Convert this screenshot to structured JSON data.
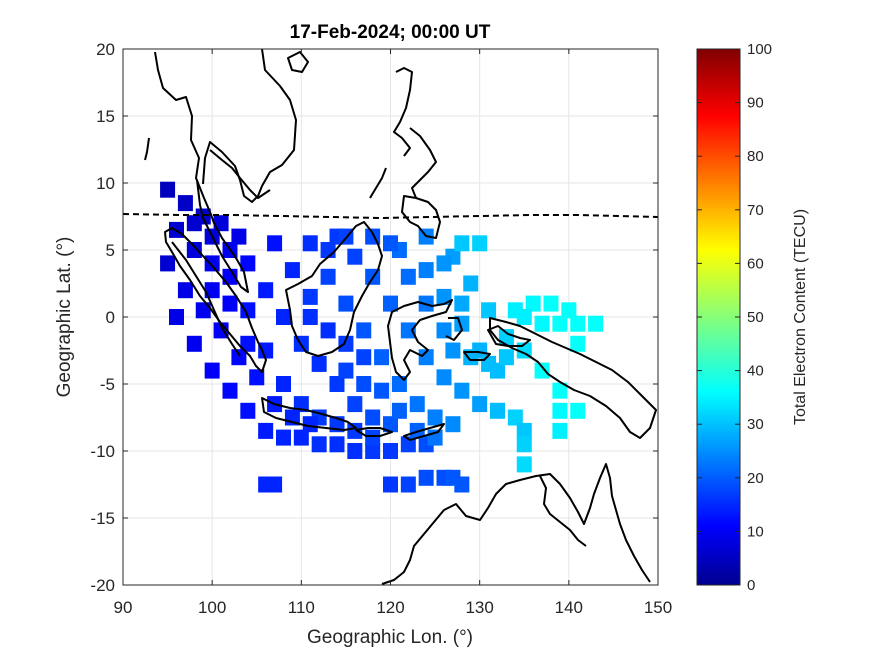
{
  "title": "17-Feb-2024; 00:00 UT",
  "chart_data": {
    "type": "heatmap",
    "title": "17-Feb-2024; 00:00 UT",
    "xlabel": "Geographic Lon. (°)",
    "ylabel": "Geographic Lat. (°)",
    "xlim": [
      90,
      150
    ],
    "ylim": [
      -20,
      20
    ],
    "x_ticks": [
      "90",
      "100",
      "110",
      "120",
      "130",
      "140",
      "150"
    ],
    "y_ticks": [
      "20",
      "15",
      "10",
      "5",
      "0",
      "-5",
      "-10",
      "-15",
      "-20"
    ],
    "grid": true,
    "colorbar": {
      "label": "Total Electron Content (TECU)",
      "range": [
        0,
        100
      ],
      "ticks": [
        "100",
        "90",
        "80",
        "70",
        "60",
        "50",
        "40",
        "30",
        "20",
        "10",
        "0"
      ],
      "colormap": "jet"
    },
    "magnetic_equator_lat": 7.5,
    "tec_cells": [
      {
        "lon": 95,
        "lat": 9.5,
        "tec": 6
      },
      {
        "lon": 97,
        "lat": 8.5,
        "tec": 7
      },
      {
        "lon": 99,
        "lat": 7.5,
        "tec": 8
      },
      {
        "lon": 101,
        "lat": 7.0,
        "tec": 9
      },
      {
        "lon": 103,
        "lat": 6.0,
        "tec": 10
      },
      {
        "lon": 96,
        "lat": 6.5,
        "tec": 8
      },
      {
        "lon": 98,
        "lat": 5.0,
        "tec": 9
      },
      {
        "lon": 100,
        "lat": 4.0,
        "tec": 11
      },
      {
        "lon": 102,
        "lat": 3.0,
        "tec": 12
      },
      {
        "lon": 95,
        "lat": 4.0,
        "tec": 8
      },
      {
        "lon": 97,
        "lat": 2.0,
        "tec": 10
      },
      {
        "lon": 99,
        "lat": 0.5,
        "tec": 11
      },
      {
        "lon": 101,
        "lat": -1.0,
        "tec": 12
      },
      {
        "lon": 96,
        "lat": 0.0,
        "tec": 10
      },
      {
        "lon": 98,
        "lat": -2.0,
        "tec": 11
      },
      {
        "lon": 100,
        "lat": -4.0,
        "tec": 12
      },
      {
        "lon": 102,
        "lat": -5.5,
        "tec": 13
      },
      {
        "lon": 104,
        "lat": -7.0,
        "tec": 14
      },
      {
        "lon": 106,
        "lat": -8.5,
        "tec": 15
      },
      {
        "lon": 108,
        "lat": -9.0,
        "tec": 16
      },
      {
        "lon": 110,
        "lat": -9.0,
        "tec": 16
      },
      {
        "lon": 112,
        "lat": -9.5,
        "tec": 17
      },
      {
        "lon": 114,
        "lat": -9.5,
        "tec": 17
      },
      {
        "lon": 116,
        "lat": -10.0,
        "tec": 17
      },
      {
        "lon": 118,
        "lat": -10.0,
        "tec": 18
      },
      {
        "lon": 120,
        "lat": -10.0,
        "tec": 18
      },
      {
        "lon": 122,
        "lat": -9.5,
        "tec": 19
      },
      {
        "lon": 124,
        "lat": -9.5,
        "tec": 20
      },
      {
        "lon": 104,
        "lat": 4.0,
        "tec": 13
      },
      {
        "lon": 106,
        "lat": 2.0,
        "tec": 15
      },
      {
        "lon": 108,
        "lat": 0.0,
        "tec": 16
      },
      {
        "lon": 110,
        "lat": -2.0,
        "tec": 17
      },
      {
        "lon": 112,
        "lat": -3.5,
        "tec": 17
      },
      {
        "lon": 114,
        "lat": -5.0,
        "tec": 18
      },
      {
        "lon": 116,
        "lat": -6.5,
        "tec": 19
      },
      {
        "lon": 118,
        "lat": -7.5,
        "tec": 20
      },
      {
        "lon": 120,
        "lat": -8.0,
        "tec": 21
      },
      {
        "lon": 106,
        "lat": -2.5,
        "tec": 15
      },
      {
        "lon": 108,
        "lat": -5.0,
        "tec": 16
      },
      {
        "lon": 110,
        "lat": -6.5,
        "tec": 17
      },
      {
        "lon": 112,
        "lat": -7.5,
        "tec": 18
      },
      {
        "lon": 104,
        "lat": -2.0,
        "tec": 14
      },
      {
        "lon": 104,
        "lat": 0.5,
        "tec": 14
      },
      {
        "lon": 107,
        "lat": 5.5,
        "tec": 14
      },
      {
        "lon": 109,
        "lat": 3.5,
        "tec": 16
      },
      {
        "lon": 111,
        "lat": 1.5,
        "tec": 18
      },
      {
        "lon": 113,
        "lat": 3.0,
        "tec": 19
      },
      {
        "lon": 115,
        "lat": 1.0,
        "tec": 20
      },
      {
        "lon": 117,
        "lat": -1.0,
        "tec": 21
      },
      {
        "lon": 119,
        "lat": -3.0,
        "tec": 22
      },
      {
        "lon": 121,
        "lat": -5.0,
        "tec": 23
      },
      {
        "lon": 123,
        "lat": -6.5,
        "tec": 24
      },
      {
        "lon": 125,
        "lat": -7.5,
        "tec": 25
      },
      {
        "lon": 127,
        "lat": -8.0,
        "tec": 26
      },
      {
        "lon": 111,
        "lat": 5.5,
        "tec": 17
      },
      {
        "lon": 114,
        "lat": 6.0,
        "tec": 18
      },
      {
        "lon": 116,
        "lat": 4.5,
        "tec": 19
      },
      {
        "lon": 118,
        "lat": 3.0,
        "tec": 21
      },
      {
        "lon": 120,
        "lat": 1.0,
        "tec": 22
      },
      {
        "lon": 122,
        "lat": -1.0,
        "tec": 24
      },
      {
        "lon": 124,
        "lat": -3.0,
        "tec": 25
      },
      {
        "lon": 126,
        "lat": -4.5,
        "tec": 26
      },
      {
        "lon": 128,
        "lat": -5.5,
        "tec": 27
      },
      {
        "lon": 130,
        "lat": -6.5,
        "tec": 28
      },
      {
        "lon": 118,
        "lat": 6.0,
        "tec": 20
      },
      {
        "lon": 121,
        "lat": 5.0,
        "tec": 23
      },
      {
        "lon": 124,
        "lat": 3.5,
        "tec": 25
      },
      {
        "lon": 126,
        "lat": 1.5,
        "tec": 27
      },
      {
        "lon": 128,
        "lat": -0.5,
        "tec": 28
      },
      {
        "lon": 130,
        "lat": -2.5,
        "tec": 30
      },
      {
        "lon": 132,
        "lat": -4.0,
        "tec": 31
      },
      {
        "lon": 124,
        "lat": 6.0,
        "tec": 25
      },
      {
        "lon": 127,
        "lat": 4.5,
        "tec": 28
      },
      {
        "lon": 128,
        "lat": 5.5,
        "tec": 32
      },
      {
        "lon": 130,
        "lat": 5.5,
        "tec": 33
      },
      {
        "lon": 129,
        "lat": 2.5,
        "tec": 30
      },
      {
        "lon": 131,
        "lat": 0.5,
        "tec": 32
      },
      {
        "lon": 133,
        "lat": -1.5,
        "tec": 33
      },
      {
        "lon": 135,
        "lat": -2.5,
        "tec": 34
      },
      {
        "lon": 134,
        "lat": 0.5,
        "tec": 36
      },
      {
        "lon": 136,
        "lat": 1.0,
        "tec": 37
      },
      {
        "lon": 138,
        "lat": 1.0,
        "tec": 38
      },
      {
        "lon": 140,
        "lat": 0.5,
        "tec": 38
      },
      {
        "lon": 137,
        "lat": -0.5,
        "tec": 37
      },
      {
        "lon": 139,
        "lat": -0.5,
        "tec": 38
      },
      {
        "lon": 141,
        "lat": -0.5,
        "tec": 38
      },
      {
        "lon": 143,
        "lat": -0.5,
        "tec": 38
      },
      {
        "lon": 135,
        "lat": 0.0,
        "tec": 36
      },
      {
        "lon": 141,
        "lat": -2.0,
        "tec": 38
      },
      {
        "lon": 137,
        "lat": -4.0,
        "tec": 38
      },
      {
        "lon": 139,
        "lat": -5.5,
        "tec": 38
      },
      {
        "lon": 139,
        "lat": -7.0,
        "tec": 37
      },
      {
        "lon": 141,
        "lat": -7.0,
        "tec": 38
      },
      {
        "lon": 139,
        "lat": -8.5,
        "tec": 36
      },
      {
        "lon": 134,
        "lat": -7.5,
        "tec": 33
      },
      {
        "lon": 135,
        "lat": -8.5,
        "tec": 32
      },
      {
        "lon": 135,
        "lat": -9.5,
        "tec": 33
      },
      {
        "lon": 135,
        "lat": -11.0,
        "tec": 34
      },
      {
        "lon": 132,
        "lat": -7.0,
        "tec": 31
      },
      {
        "lon": 129,
        "lat": -3.0,
        "tec": 30
      },
      {
        "lon": 131,
        "lat": -3.5,
        "tec": 31
      },
      {
        "lon": 106,
        "lat": -12.5,
        "tec": 16
      },
      {
        "lon": 107,
        "lat": -12.5,
        "tec": 16
      },
      {
        "lon": 120,
        "lat": -12.5,
        "tec": 18
      },
      {
        "lon": 122,
        "lat": -12.5,
        "tec": 19
      },
      {
        "lon": 124,
        "lat": -12.0,
        "tec": 20
      },
      {
        "lon": 126,
        "lat": -12.0,
        "tec": 20
      },
      {
        "lon": 128,
        "lat": -12.5,
        "tec": 21
      },
      {
        "lon": 127,
        "lat": -12.0,
        "tec": 21
      },
      {
        "lon": 111,
        "lat": 0.0,
        "tec": 17
      },
      {
        "lon": 113,
        "lat": -1.0,
        "tec": 17
      },
      {
        "lon": 115,
        "lat": -2.0,
        "tec": 18
      },
      {
        "lon": 117,
        "lat": -3.0,
        "tec": 19
      },
      {
        "lon": 115,
        "lat": -4.0,
        "tec": 19
      },
      {
        "lon": 117,
        "lat": -5.0,
        "tec": 20
      },
      {
        "lon": 119,
        "lat": -5.5,
        "tec": 21
      },
      {
        "lon": 121,
        "lat": -7.0,
        "tec": 22
      },
      {
        "lon": 123,
        "lat": -8.5,
        "tec": 22
      },
      {
        "lon": 125,
        "lat": -9.0,
        "tec": 24
      },
      {
        "lon": 114,
        "lat": -8.0,
        "tec": 18
      },
      {
        "lon": 116,
        "lat": -8.5,
        "tec": 18
      },
      {
        "lon": 118,
        "lat": -9.0,
        "tec": 19
      },
      {
        "lon": 102,
        "lat": 1.0,
        "tec": 12
      },
      {
        "lon": 100,
        "lat": 2.0,
        "tec": 11
      },
      {
        "lon": 98,
        "lat": 7.0,
        "tec": 8
      },
      {
        "lon": 100,
        "lat": 6.0,
        "tec": 9
      },
      {
        "lon": 102,
        "lat": 5.0,
        "tec": 11
      },
      {
        "lon": 103,
        "lat": -3.0,
        "tec": 13
      },
      {
        "lon": 105,
        "lat": -4.5,
        "tec": 14
      },
      {
        "lon": 107,
        "lat": -6.5,
        "tec": 15
      },
      {
        "lon": 109,
        "lat": -7.5,
        "tec": 16
      },
      {
        "lon": 111,
        "lat": -8.0,
        "tec": 16
      },
      {
        "lon": 113,
        "lat": 5.0,
        "tec": 18
      },
      {
        "lon": 115,
        "lat": 6.0,
        "tec": 19
      },
      {
        "lon": 120,
        "lat": 5.5,
        "tec": 21
      },
      {
        "lon": 122,
        "lat": 3.0,
        "tec": 23
      },
      {
        "lon": 124,
        "lat": 1.0,
        "tec": 24
      },
      {
        "lon": 126,
        "lat": -1.0,
        "tec": 26
      },
      {
        "lon": 127,
        "lat": -2.5,
        "tec": 27
      },
      {
        "lon": 128,
        "lat": 1.0,
        "tec": 29
      },
      {
        "lon": 126,
        "lat": 4.0,
        "tec": 27
      },
      {
        "lon": 133,
        "lat": -3.0,
        "tec": 32
      }
    ]
  }
}
